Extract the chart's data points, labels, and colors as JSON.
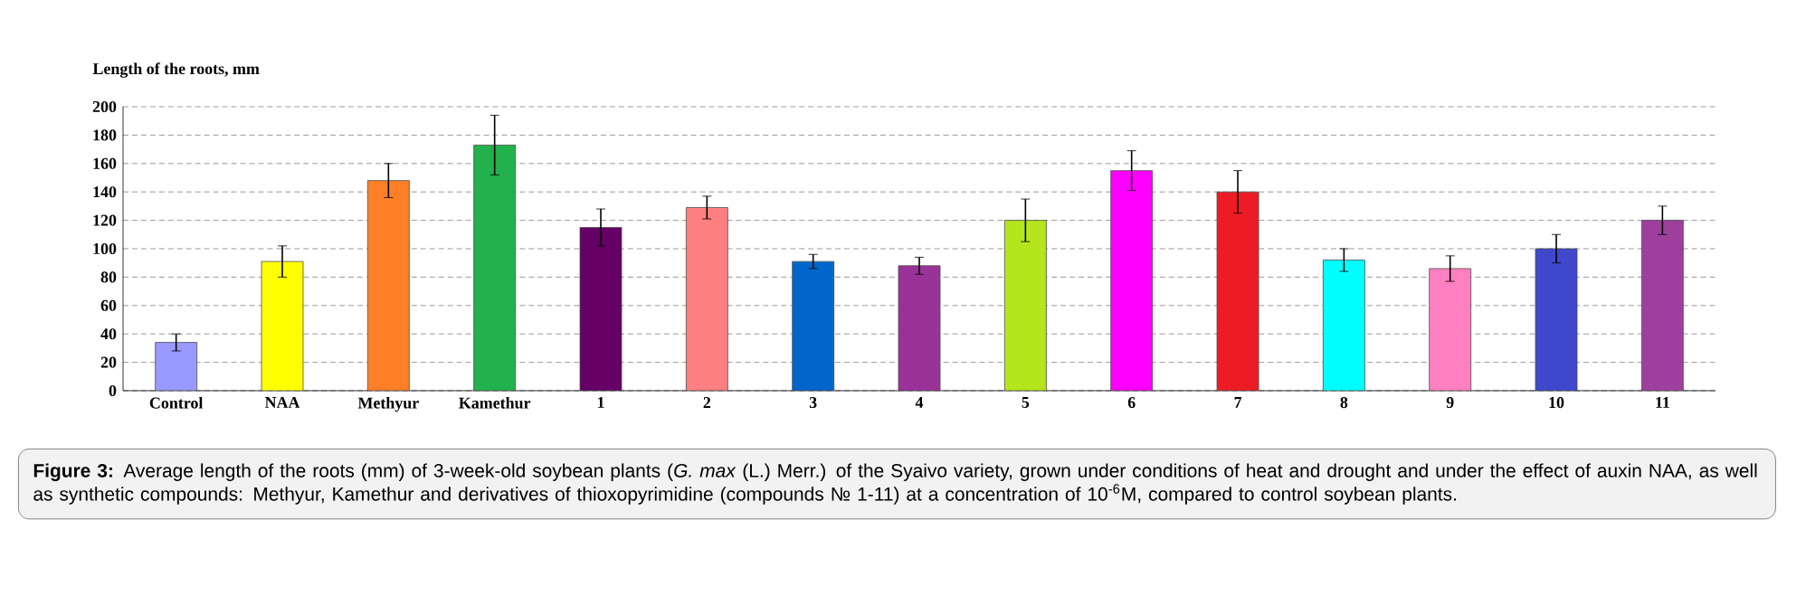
{
  "chart_data": {
    "type": "bar",
    "ylabel": "Length of the roots, mm",
    "categories": [
      "Control",
      "NAA",
      "Methyur",
      "Kamethur",
      "1",
      "2",
      "3",
      "4",
      "5",
      "6",
      "7",
      "8",
      "9",
      "10",
      "11"
    ],
    "values": [
      34,
      91,
      148,
      173,
      115,
      129,
      91,
      88,
      120,
      155,
      140,
      92,
      86,
      100,
      120
    ],
    "errors": [
      6,
      11,
      12,
      21,
      13,
      8,
      5,
      6,
      15,
      14,
      15,
      8,
      9,
      10,
      10
    ],
    "colors": [
      "#9999ff",
      "#ffff00",
      "#ff7f27",
      "#22b14c",
      "#660066",
      "#ff8080",
      "#0066cc",
      "#993399",
      "#b5e61d",
      "#ff00ff",
      "#ed1c24",
      "#00ffff",
      "#ff80c0",
      "#3f48cc",
      "#9e3f9e"
    ],
    "ylim": [
      0,
      200
    ],
    "yticks": [
      0,
      20,
      40,
      60,
      80,
      100,
      120,
      140,
      160,
      180,
      200
    ],
    "grid": "y",
    "annotations": [
      "**Figure 3:** Average length of the roots (mm) of 3-week-old soybean plants (*G. max* (L.) Merr.) of the Syaivo variety, grown under conditions of heat and drought and under the effect of auxin NAA, as well as synthetic compounds: Methyur, Kamethur and derivatives of thioxopyrimidine (compounds № 1-11) at a concentration of 10$^{-6}$M, compared to control soybean plants."
    ]
  }
}
